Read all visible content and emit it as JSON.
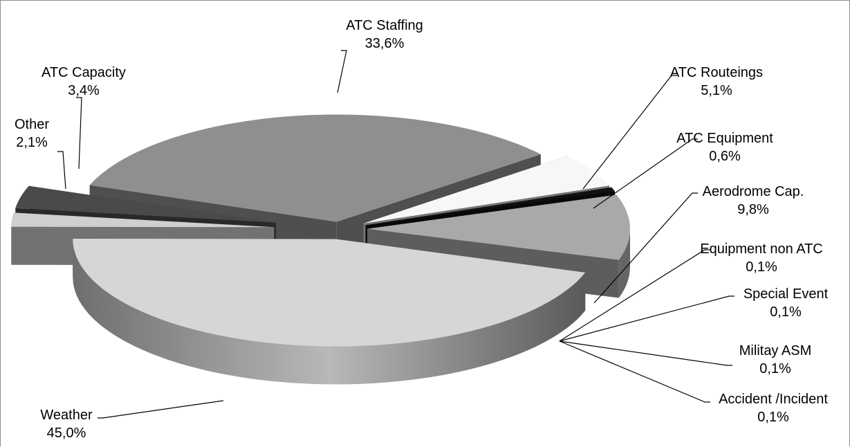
{
  "chart_data": {
    "type": "pie",
    "style": "3d-exploded",
    "legend": "none",
    "slices": [
      {
        "name": "ATC Staffing",
        "value": 33.6,
        "label": "33,6%",
        "color": "#8f8f8f"
      },
      {
        "name": "ATC Routeings",
        "value": 5.1,
        "label": "5,1%",
        "color": "#f6f7f9"
      },
      {
        "name": "ATC Equipment",
        "value": 0.6,
        "label": "0,6%",
        "color": "#111111"
      },
      {
        "name": "Aerodrome Cap.",
        "value": 9.8,
        "label": "9,8%",
        "color": "#a9a9a9"
      },
      {
        "name": "Equipment non ATC",
        "value": 0.1,
        "label": "0,1%",
        "color": "#9a9a9a"
      },
      {
        "name": "Special Event",
        "value": 0.1,
        "label": "0,1%",
        "color": "#9a9a9a"
      },
      {
        "name": "Militay ASM",
        "value": 0.1,
        "label": "0,1%",
        "color": "#9a9a9a"
      },
      {
        "name": "Accident /Incident",
        "value": 0.1,
        "label": "0,1%",
        "color": "#9a9a9a"
      },
      {
        "name": "Weather",
        "value": 45.0,
        "label": "45,0%",
        "color": "#d6d6d6"
      },
      {
        "name": "Other",
        "value": 2.1,
        "label": "2,1%",
        "color": "#cfcfcf"
      },
      {
        "name": "ATC Capacity",
        "value": 3.4,
        "label": "3,4%",
        "color": "#4a4a4a"
      }
    ]
  }
}
